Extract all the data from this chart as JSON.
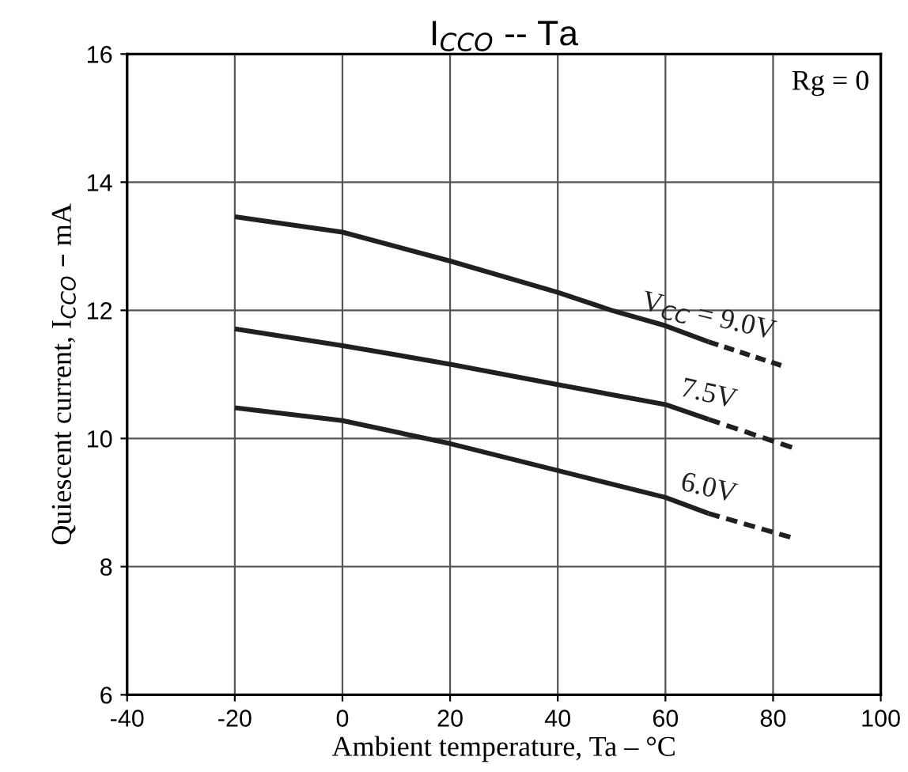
{
  "chart_data": {
    "type": "line",
    "title": "I$_{CCO}$ -- Ta",
    "xlabel": "Ambient temperature, Ta – °C",
    "ylabel": "Quiescent current, I$_{CCO}$ – mA",
    "series": [
      {
        "name": "V$_{CC}$ = 9.0V",
        "color": "#231f20",
        "line_style": "solid",
        "x": [
          -20,
          0,
          20,
          40,
          50,
          60,
          68
        ],
        "values": [
          13.46,
          13.22,
          12.77,
          12.28,
          12.0,
          11.76,
          11.51
        ]
      },
      {
        "color": "#231f20",
        "line_style": "dashed",
        "x": [
          68,
          81.5
        ],
        "values": [
          11.51,
          11.14
        ]
      },
      {
        "name": "7.5V",
        "color": "#231f20",
        "line_style": "solid",
        "x": [
          -20,
          0,
          20,
          40,
          60,
          68
        ],
        "values": [
          11.71,
          11.45,
          11.16,
          10.84,
          10.53,
          10.3
        ]
      },
      {
        "color": "#231f20",
        "line_style": "dashed",
        "x": [
          68,
          83.5
        ],
        "values": [
          10.3,
          9.86
        ]
      },
      {
        "name": "6.0V",
        "color": "#231f20",
        "line_style": "solid",
        "x": [
          -20,
          0,
          20,
          40,
          60,
          68
        ],
        "values": [
          10.48,
          10.28,
          9.92,
          9.5,
          9.08,
          8.83
        ]
      },
      {
        "color": "#231f20",
        "line_style": "dashed",
        "x": [
          68,
          83.2
        ],
        "values": [
          8.83,
          8.46
        ]
      }
    ],
    "annotations": [
      "Rg = 0"
    ],
    "xlim": [
      -40,
      100
    ],
    "xticks": [
      -40,
      -20,
      0,
      20,
      40,
      60,
      80,
      100
    ],
    "ylim": [
      6,
      16
    ],
    "yticks": [
      6,
      8,
      10,
      12,
      14,
      16
    ],
    "grid": true
  }
}
